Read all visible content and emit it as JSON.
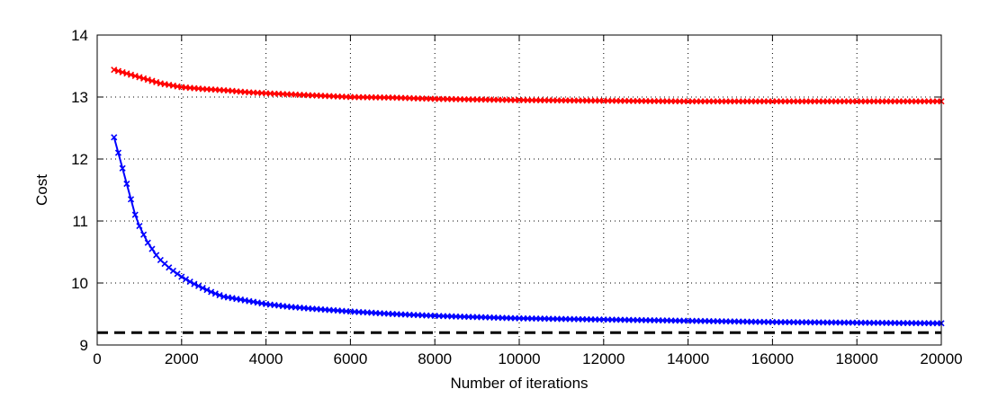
{
  "chart_data": {
    "type": "line",
    "xlabel": "Number of iterations",
    "ylabel": "Cost",
    "xlim": [
      0,
      20000
    ],
    "ylim": [
      9,
      14
    ],
    "xticks": [
      0,
      2000,
      4000,
      6000,
      8000,
      10000,
      12000,
      14000,
      16000,
      18000,
      20000
    ],
    "yticks": [
      9,
      10,
      11,
      12,
      13,
      14
    ],
    "grid": true,
    "reference_line": {
      "y": 9.2,
      "style": "dashed",
      "color": "#000000"
    },
    "series": [
      {
        "color": "#ff0000",
        "marker": "x",
        "x": [
          400,
          600,
          800,
          1000,
          1200,
          1500,
          2000,
          2500,
          3000,
          3500,
          4000,
          5000,
          6000,
          7000,
          8000,
          9000,
          10000,
          12000,
          14000,
          16000,
          18000,
          20000
        ],
        "y": [
          13.44,
          13.4,
          13.36,
          13.32,
          13.28,
          13.22,
          13.16,
          13.13,
          13.11,
          13.08,
          13.06,
          13.03,
          13.0,
          12.99,
          12.97,
          12.96,
          12.95,
          12.94,
          12.93,
          12.93,
          12.93,
          12.93
        ]
      },
      {
        "color": "#0000ff",
        "marker": "x",
        "x": [
          400,
          500,
          600,
          700,
          800,
          900,
          1000,
          1100,
          1200,
          1300,
          1400,
          1500,
          1750,
          2000,
          2250,
          2500,
          2750,
          3000,
          3500,
          4000,
          4500,
          5000,
          6000,
          7000,
          8000,
          9000,
          10000,
          12000,
          14000,
          16000,
          18000,
          20000
        ],
        "y": [
          12.35,
          12.1,
          11.85,
          11.6,
          11.35,
          11.1,
          10.92,
          10.78,
          10.65,
          10.55,
          10.45,
          10.37,
          10.22,
          10.1,
          10.0,
          9.92,
          9.84,
          9.78,
          9.72,
          9.66,
          9.62,
          9.59,
          9.54,
          9.5,
          9.47,
          9.45,
          9.43,
          9.41,
          9.39,
          9.37,
          9.36,
          9.35
        ]
      }
    ]
  }
}
